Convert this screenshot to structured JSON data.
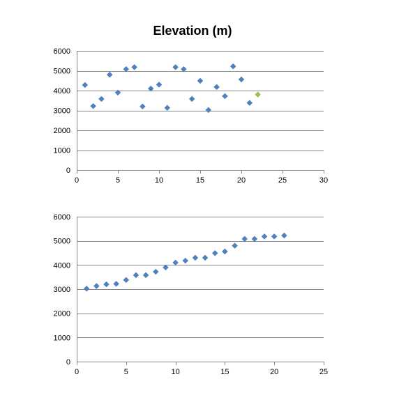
{
  "title": "Elevation (m)",
  "colors": {
    "series": "#4F81BD",
    "highlight": "#9BBB59",
    "grid": "#868686"
  },
  "chart_data": [
    {
      "type": "scatter",
      "title": "Elevation (m)",
      "xlim": [
        0,
        30
      ],
      "ylim": [
        0,
        6000
      ],
      "x_ticks": [
        0,
        5,
        10,
        15,
        20,
        25,
        30
      ],
      "y_ticks": [
        0,
        1000,
        2000,
        3000,
        4000,
        5000,
        6000
      ],
      "grid": "horizontal",
      "legend": "none",
      "series": [
        {
          "x": [
            1,
            2,
            3,
            4,
            5,
            6,
            7,
            8,
            9,
            10,
            11,
            12,
            13,
            14,
            15,
            16,
            17,
            18,
            19,
            20,
            21,
            22
          ],
          "y": [
            4280,
            3220,
            3580,
            4800,
            3900,
            5080,
            5180,
            3200,
            4100,
            4300,
            3130,
            5180,
            5080,
            3580,
            4490,
            3020,
            4180,
            3720,
            5220,
            4560,
            3380,
            3800
          ],
          "highlight_index": 21
        }
      ]
    },
    {
      "type": "scatter",
      "xlim": [
        0,
        25
      ],
      "ylim": [
        0,
        6000
      ],
      "x_ticks": [
        0,
        5,
        10,
        15,
        20,
        25
      ],
      "y_ticks": [
        0,
        1000,
        2000,
        3000,
        4000,
        5000,
        6000
      ],
      "grid": "horizontal",
      "legend": "none",
      "series": [
        {
          "x": [
            1,
            2,
            3,
            4,
            5,
            6,
            7,
            8,
            9,
            10,
            11,
            12,
            13,
            14,
            15,
            16,
            17,
            18,
            19,
            20,
            21
          ],
          "y": [
            3020,
            3130,
            3200,
            3220,
            3380,
            3580,
            3580,
            3720,
            3900,
            4100,
            4180,
            4300,
            4300,
            4490,
            4560,
            4800,
            5080,
            5080,
            5180,
            5180,
            5220
          ]
        }
      ]
    }
  ]
}
